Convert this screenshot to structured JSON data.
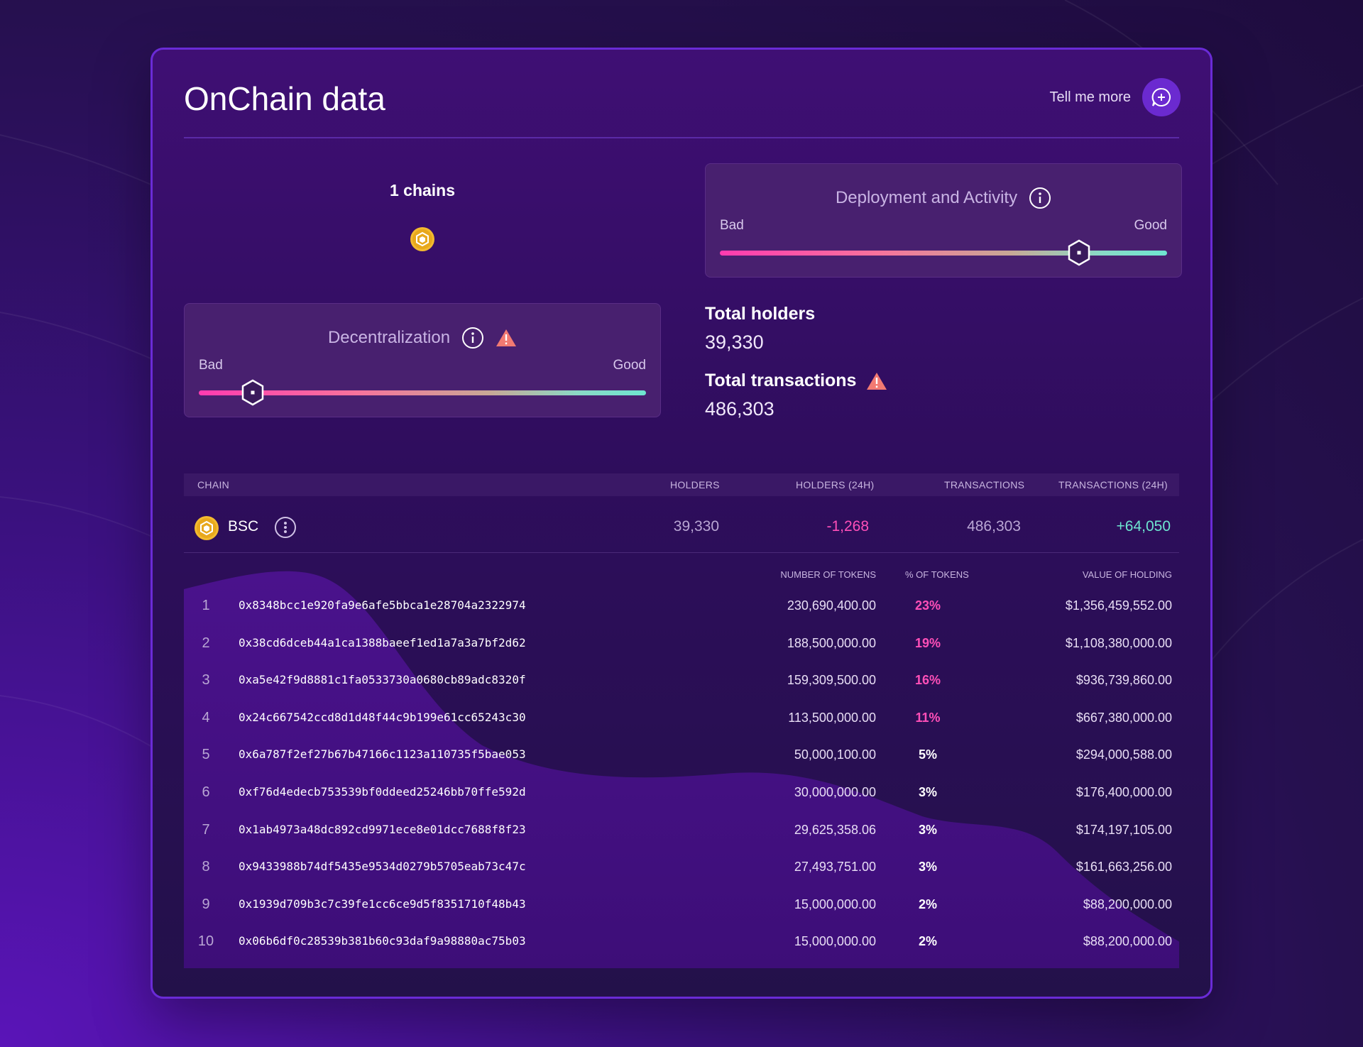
{
  "header": {
    "title": "OnChain data",
    "tell_more": "Tell me more"
  },
  "chains": {
    "label": "1 chains",
    "icon": "bnb-coin-icon"
  },
  "deployment": {
    "title": "Deployment and Activity",
    "bad": "Bad",
    "good": "Good",
    "level": 0.8
  },
  "decentralization": {
    "title": "Decentralization",
    "bad": "Bad",
    "good": "Good",
    "level": 0.12,
    "warning": true
  },
  "stats": {
    "holders_label": "Total holders",
    "holders_value": "39,330",
    "transactions_label": "Total transactions",
    "transactions_value": "486,303"
  },
  "table": {
    "headers": {
      "chain": "CHAIN",
      "holders": "HOLDERS",
      "holders_24h": "HOLDERS (24H)",
      "transactions": "TRANSACTIONS",
      "transactions_24h": "TRANSACTIONS (24H)"
    },
    "row": {
      "chain": "BSC",
      "holders": "39,330",
      "holders_24h": "-1,268",
      "transactions": "486,303",
      "transactions_24h": "+64,050"
    }
  },
  "holders_table": {
    "headers": {
      "tokens": "NUMBER OF TOKENS",
      "pct": "% OF TOKENS",
      "value": "VALUE OF HOLDING"
    },
    "rows": [
      {
        "idx": "1",
        "address": "0x8348bcc1e920fa9e6afe5bbca1e28704a2322974",
        "tokens": "230,690,400.00",
        "pct": "23%",
        "value": "$1,356,459,552.00",
        "highlight": true
      },
      {
        "idx": "2",
        "address": "0x38cd6dceb44a1ca1388baeef1ed1a7a3a7bf2d62",
        "tokens": "188,500,000.00",
        "pct": "19%",
        "value": "$1,108,380,000.00",
        "highlight": true
      },
      {
        "idx": "3",
        "address": "0xa5e42f9d8881c1fa0533730a0680cb89adc8320f",
        "tokens": "159,309,500.00",
        "pct": "16%",
        "value": "$936,739,860.00",
        "highlight": true
      },
      {
        "idx": "4",
        "address": "0x24c667542ccd8d1d48f44c9b199e61cc65243c30",
        "tokens": "113,500,000.00",
        "pct": "11%",
        "value": "$667,380,000.00",
        "highlight": true
      },
      {
        "idx": "5",
        "address": "0x6a787f2ef27b67b47166c1123a110735f5bae053",
        "tokens": "50,000,100.00",
        "pct": "5%",
        "value": "$294,000,588.00",
        "highlight": false
      },
      {
        "idx": "6",
        "address": "0xf76d4edecb753539bf0ddeed25246bb70ffe592d",
        "tokens": "30,000,000.00",
        "pct": "3%",
        "value": "$176,400,000.00",
        "highlight": false
      },
      {
        "idx": "7",
        "address": "0x1ab4973a48dc892cd9971ece8e01dcc7688f8f23",
        "tokens": "29,625,358.06",
        "pct": "3%",
        "value": "$174,197,105.00",
        "highlight": false
      },
      {
        "idx": "8",
        "address": "0x9433988b74df5435e9534d0279b5705eab73c47c",
        "tokens": "27,493,751.00",
        "pct": "3%",
        "value": "$161,663,256.00",
        "highlight": false
      },
      {
        "idx": "9",
        "address": "0x1939d709b3c7c39fe1cc6ce9d5f8351710f48b43",
        "tokens": "15,000,000.00",
        "pct": "2%",
        "value": "$88,200,000.00",
        "highlight": false
      },
      {
        "idx": "10",
        "address": "0x06b6df0c28539b381b60c93daf9a98880ac75b03",
        "tokens": "15,000,000.00",
        "pct": "2%",
        "value": "$88,200,000.00",
        "highlight": false
      }
    ]
  },
  "colors": {
    "accent": "#6b2ad0",
    "pink": "#ff4fb8",
    "teal": "#6ee6d0",
    "warning": "#f27a72",
    "coin": "#f3ba2f"
  }
}
